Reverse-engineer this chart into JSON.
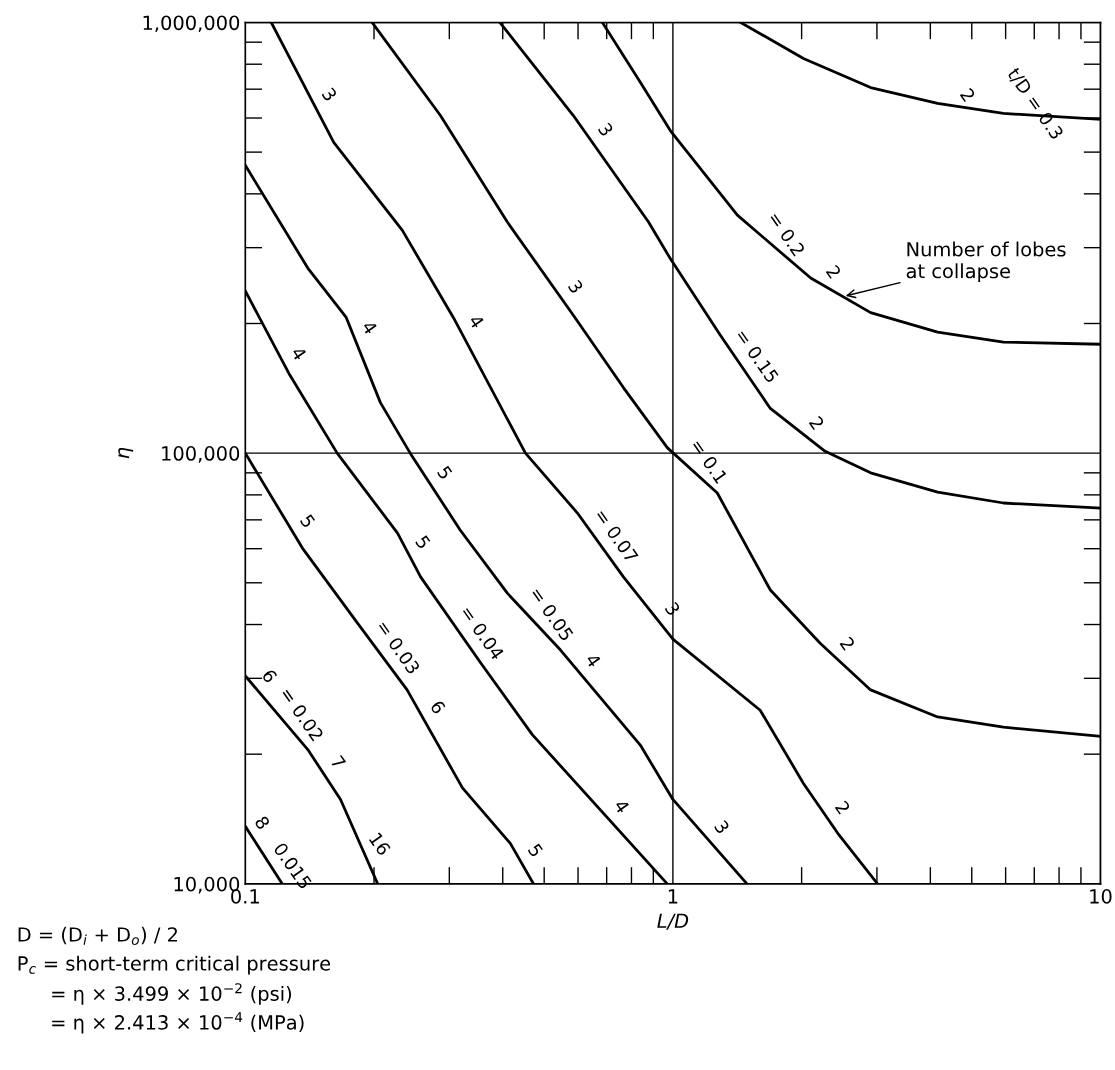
{
  "chart_data": {
    "type": "line",
    "xlabel": "L/D",
    "ylabel": "η",
    "log": "xy",
    "grid": true,
    "xlim": [
      0.1,
      10
    ],
    "ylim": [
      10000,
      1000000
    ],
    "xticks": [
      0.1,
      1,
      10
    ],
    "yticks": [
      {
        "value": 10000,
        "label": "10,000"
      },
      {
        "value": 100000,
        "label": "100,000"
      },
      {
        "value": 1000000,
        "label": "1,000,000"
      }
    ],
    "series": [
      {
        "color": "#000000",
        "x": [
          1.44,
          2.02,
          2.9,
          4.16,
          5.93,
          10
        ],
        "values": [
          1000000,
          825000,
          706000,
          649000,
          615000,
          596000
        ]
      },
      {
        "color": "#000000",
        "x": [
          0.684,
          0.839,
          0.986,
          1.415,
          2.1,
          2.9,
          4.16,
          5.93,
          10
        ],
        "values": [
          1000000,
          726000,
          561000,
          357000,
          255000,
          212000,
          191000,
          181000,
          179000
        ]
      },
      {
        "color": "#000000",
        "x": [
          0.394,
          0.585,
          0.877,
          0.986,
          1.29,
          1.69,
          2.27,
          2.9,
          4.16,
          5.93,
          10
        ],
        "values": [
          1000000,
          608000,
          344000,
          283000,
          188000,
          127000,
          101000,
          90000,
          81200,
          76600,
          74500
        ]
      },
      {
        "color": "#000000",
        "x": [
          0.198,
          0.286,
          0.41,
          0.585,
          0.766,
          0.97,
          1.27,
          1.69,
          2.21,
          2.9,
          4.16,
          5.93,
          10
        ],
        "values": [
          1000000,
          608000,
          344000,
          209000,
          142000,
          103000,
          80800,
          48100,
          36200,
          28200,
          24400,
          23100,
          22000
        ]
      },
      {
        "color": "#000000",
        "x": [
          0.115,
          0.161,
          0.233,
          0.307,
          0.452,
          0.598,
          0.766,
          1.0,
          1.6,
          2.02,
          2.43,
          3.01
        ],
        "values": [
          1000000,
          527000,
          329000,
          206000,
          100000,
          72600,
          51600,
          37000,
          25300,
          17100,
          13100,
          10000
        ]
      },
      {
        "color": "#000000",
        "x": [
          0.1,
          0.14,
          0.172,
          0.207,
          0.243,
          0.318,
          0.41,
          0.546,
          0.839,
          1.0,
          1.49
        ],
        "values": [
          466000,
          269000,
          207000,
          131000,
          100000,
          66300,
          47300,
          34900,
          21000,
          15700,
          10000
        ]
      },
      {
        "color": "#000000",
        "x": [
          0.1,
          0.127,
          0.164,
          0.227,
          0.257,
          0.355,
          0.469,
          0.97
        ],
        "values": [
          238000,
          152000,
          100000,
          65200,
          51600,
          32600,
          22200,
          10000
        ]
      },
      {
        "color": "#000000",
        "x": [
          0.1,
          0.136,
          0.183,
          0.239,
          0.322,
          0.417,
          0.472
        ],
        "values": [
          100000,
          60200,
          40300,
          28200,
          16700,
          12400,
          10000
        ]
      },
      {
        "color": "#000000",
        "x": [
          0.1,
          0.14,
          0.167,
          0.204
        ],
        "values": [
          30400,
          20500,
          15700,
          10000
        ]
      },
      {
        "color": "#000000",
        "x": [
          0.1,
          0.122
        ],
        "values": [
          13600,
          10000
        ]
      }
    ],
    "annotations": [
      {
        "text": "Number of lobes\nat collapse",
        "x": 2.5,
        "y": 231000
      },
      {
        "text": "2",
        "x": 4.51,
        "y": 641000
      },
      {
        "text": "t/D = 0.3",
        "x": 6.5,
        "y": 612000
      },
      {
        "text": "3",
        "x": 0.145,
        "y": 643000
      },
      {
        "text": "3",
        "x": 0.642,
        "y": 533000
      },
      {
        "text": "3",
        "x": 0.546,
        "y": 230000
      },
      {
        "text": "4",
        "x": 0.18,
        "y": 185000
      },
      {
        "text": "4",
        "x": 0.32,
        "y": 191000
      },
      {
        "text": "4",
        "x": 0.123,
        "y": 161000
      },
      {
        "text": "2",
        "x": 2.19,
        "y": 249000
      },
      {
        "text": "= 0.2",
        "x": 1.7,
        "y": 305000
      },
      {
        "text": "= 0.15",
        "x": 1.45,
        "y": 159000
      },
      {
        "text": "2",
        "x": 2.0,
        "y": 111000
      },
      {
        "text": "= 0.1",
        "x": 1.12,
        "y": 90500
      },
      {
        "text": "2",
        "x": 2.36,
        "y": 34100
      },
      {
        "text": "2",
        "x": 2.3,
        "y": 14200
      },
      {
        "text": "3",
        "x": 1.2,
        "y": 12800
      },
      {
        "text": "5",
        "x": 0.129,
        "y": 65700
      },
      {
        "text": "5",
        "x": 0.27,
        "y": 85100
      },
      {
        "text": "5",
        "x": 0.24,
        "y": 58700
      },
      {
        "text": "= 0.07",
        "x": 0.68,
        "y": 60800
      },
      {
        "text": "3",
        "x": 0.92,
        "y": 41100
      },
      {
        "text": "= 0.05",
        "x": 0.48,
        "y": 40000
      },
      {
        "text": "4",
        "x": 0.6,
        "y": 31200
      },
      {
        "text": "6",
        "x": 0.105,
        "y": 28700
      },
      {
        "text": "= 0.04",
        "x": 0.33,
        "y": 36200
      },
      {
        "text": "6",
        "x": 0.26,
        "y": 24300
      },
      {
        "text": "= 0.03",
        "x": 0.21,
        "y": 33500
      },
      {
        "text": "7",
        "x": 0.152,
        "y": 18100
      },
      {
        "text": "= 0.02",
        "x": 0.125,
        "y": 23400
      },
      {
        "text": "4",
        "x": 0.7,
        "y": 14300
      },
      {
        "text": "5",
        "x": 0.44,
        "y": 11300
      },
      {
        "text": "16",
        "x": 0.19,
        "y": 11700
      },
      {
        "text": "8",
        "x": 0.101,
        "y": 13100
      },
      {
        "text": "0.015",
        "x": 0.119,
        "y": 10400
      },
      "D = (D$_{i}$ + D$_{o}$) / 2",
      "P$_{c}$ = short-term critical pressure",
      "= η × 3.499 × 10$^{−2}$ (psi)",
      "= η × 2.413 × 10$^{−4}$ (MPa)"
    ]
  }
}
